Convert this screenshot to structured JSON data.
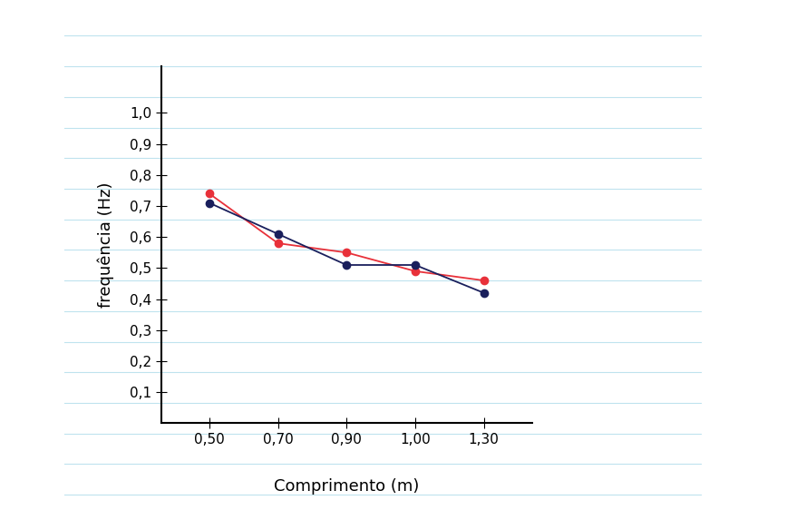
{
  "chart_data": {
    "type": "line",
    "x_label": "Comprimento (m)",
    "y_label": "frequência (Hz)",
    "categories": [
      "0,50",
      "0,70",
      "0,90",
      "1,00",
      "1,30"
    ],
    "series": [
      {
        "color": "#e8313a",
        "marker": "o",
        "line_style": "solid",
        "values": [
          0.74,
          0.58,
          0.55,
          0.49,
          0.46
        ]
      },
      {
        "color": "#1a1f5c",
        "marker": "o",
        "line_style": "solid",
        "values": [
          0.71,
          0.61,
          0.51,
          0.51,
          0.42
        ]
      }
    ],
    "ylim": [
      0,
      1.15
    ],
    "yticks": [
      {
        "value": 0.1,
        "label": "0,1"
      },
      {
        "value": 0.2,
        "label": "0,2"
      },
      {
        "value": 0.3,
        "label": "0,3"
      },
      {
        "value": 0.4,
        "label": "0,4"
      },
      {
        "value": 0.5,
        "label": "0,5"
      },
      {
        "value": 0.6,
        "label": "0,6"
      },
      {
        "value": 0.7,
        "label": "0,7"
      },
      {
        "value": 0.8,
        "label": "0,8"
      },
      {
        "value": 0.9,
        "label": "0,9"
      },
      {
        "value": 1.0,
        "label": "1,0"
      }
    ],
    "grid": false
  }
}
